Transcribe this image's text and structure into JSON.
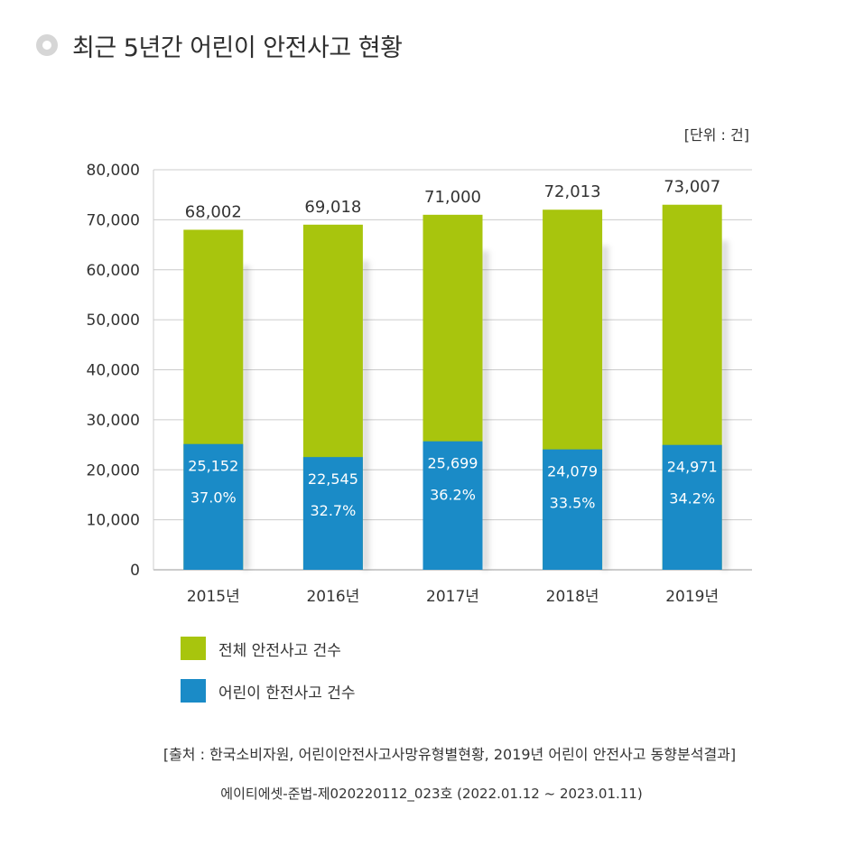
{
  "title": "최근 5년간 어린이 안전사고 현황",
  "unit": "[단위 : 건]",
  "colors": {
    "total": "#a8c50d",
    "child": "#1a8bc7",
    "grid": "#cccccc",
    "axis": "#999999"
  },
  "chart_data": {
    "type": "bar",
    "categories": [
      "2015년",
      "2016년",
      "2017년",
      "2018년",
      "2019년"
    ],
    "series": [
      {
        "name": "전체 안전사고 건수",
        "values": [
          68002,
          69018,
          71000,
          72013,
          73007
        ],
        "labels": [
          "68,002",
          "69,018",
          "71,000",
          "72,013",
          "73,007"
        ]
      },
      {
        "name": "어린이 한전사고 건수",
        "values": [
          25152,
          22545,
          25699,
          24079,
          24971
        ],
        "labels": [
          "25,152",
          "22,545",
          "25,699",
          "24,079",
          "24,971"
        ],
        "percent_labels": [
          "37.0%",
          "32.7%",
          "36.2%",
          "33.5%",
          "34.2%"
        ]
      }
    ],
    "ylim": [
      0,
      80000
    ],
    "yticks": [
      0,
      10000,
      20000,
      30000,
      40000,
      50000,
      60000,
      70000,
      80000
    ],
    "ytick_labels": [
      "0",
      "10,000",
      "20,000",
      "30,000",
      "40,000",
      "50,000",
      "60,000",
      "70,000",
      "80,000"
    ],
    "grid": true,
    "legend_position": "bottom-left"
  },
  "legend": [
    {
      "label": "전체 안전사고 건수"
    },
    {
      "label": "어린이 한전사고 건수"
    }
  ],
  "source": {
    "line1": "[출처 : 한국소비자원, 어린이안전사고사망유형별현황, 2019년 어린이 안전사고 동향분석결과]",
    "line2": "에이티에셋-준법-제020220112_023호 (2022.01.12 ~ 2023.01.11)"
  }
}
